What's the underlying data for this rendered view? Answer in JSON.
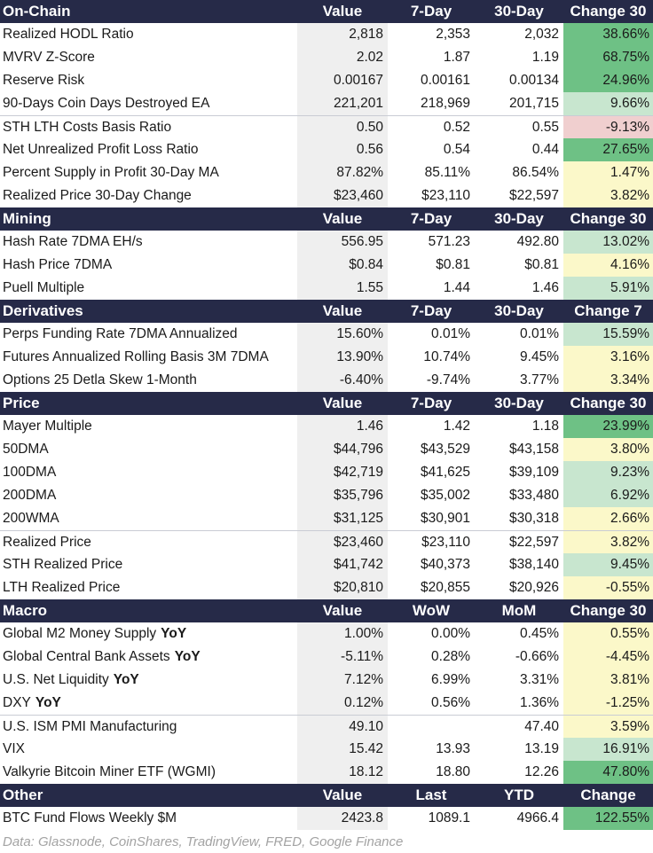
{
  "colors": {
    "header_bg": "#262a48",
    "value_col_bg": "#efefef",
    "strong_green": "#6ec185",
    "light_green": "#c8e6cf",
    "light_yellow": "#fbf8c9",
    "light_red": "#f0cfcf"
  },
  "sections": [
    {
      "title": "On-Chain",
      "columns": [
        "Value",
        "7-Day",
        "30-Day",
        "Change 30"
      ],
      "rows": [
        {
          "name": "Realized HODL Ratio",
          "v": "2,818",
          "w": "2,353",
          "m": "2,032",
          "ch": "38.66%",
          "tone": "sg"
        },
        {
          "name": "MVRV Z-Score",
          "v": "2.02",
          "w": "1.87",
          "m": "1.19",
          "ch": "68.75%",
          "tone": "sg"
        },
        {
          "name": "Reserve Risk",
          "v": "0.00167",
          "w": "0.00161",
          "m": "0.00134",
          "ch": "24.96%",
          "tone": "sg"
        },
        {
          "name": "90-Days Coin Days Destroyed EA",
          "v": "221,201",
          "w": "218,969",
          "m": "201,715",
          "ch": "9.66%",
          "tone": "lg"
        },
        {
          "name": "STH LTH Costs Basis Ratio",
          "v": "0.50",
          "w": "0.52",
          "m": "0.55",
          "ch": "-9.13%",
          "tone": "lr",
          "sep": true
        },
        {
          "name": "Net Unrealized Profit Loss Ratio",
          "v": "0.56",
          "w": "0.54",
          "m": "0.44",
          "ch": "27.65%",
          "tone": "sg"
        },
        {
          "name": "Percent Supply in Profit 30-Day MA",
          "v": "87.82%",
          "w": "85.11%",
          "m": "86.54%",
          "ch": "1.47%",
          "tone": "ly"
        },
        {
          "name": "Realized Price 30-Day Change",
          "v": "$23,460",
          "w": "$23,110",
          "m": "$22,597",
          "ch": "3.82%",
          "tone": "ly"
        }
      ]
    },
    {
      "title": "Mining",
      "columns": [
        "Value",
        "7-Day",
        "30-Day",
        "Change 30"
      ],
      "rows": [
        {
          "name": "Hash Rate 7DMA EH/s",
          "v": "556.95",
          "w": "571.23",
          "m": "492.80",
          "ch": "13.02%",
          "tone": "lg"
        },
        {
          "name": "Hash Price 7DMA",
          "v": "$0.84",
          "w": "$0.81",
          "m": "$0.81",
          "ch": "4.16%",
          "tone": "ly"
        },
        {
          "name": "Puell Multiple",
          "v": "1.55",
          "w": "1.44",
          "m": "1.46",
          "ch": "5.91%",
          "tone": "lg"
        }
      ]
    },
    {
      "title": "Derivatives",
      "columns": [
        "Value",
        "7-Day",
        "30-Day",
        "Change 7"
      ],
      "rows": [
        {
          "name": "Perps Funding Rate 7DMA Annualized",
          "v": "15.60%",
          "w": "0.01%",
          "m": "0.01%",
          "ch": "15.59%",
          "tone": "lg"
        },
        {
          "name": "Futures Annualized Rolling Basis 3M 7DMA",
          "v": "13.90%",
          "w": "10.74%",
          "m": "9.45%",
          "ch": "3.16%",
          "tone": "ly"
        },
        {
          "name": "Options 25 Detla Skew 1-Month",
          "v": "-6.40%",
          "w": "-9.74%",
          "m": "3.77%",
          "ch": "3.34%",
          "tone": "ly"
        }
      ]
    },
    {
      "title": "Price",
      "columns": [
        "Value",
        "7-Day",
        "30-Day",
        "Change 30"
      ],
      "rows": [
        {
          "name": "Mayer Multiple",
          "v": "1.46",
          "w": "1.42",
          "m": "1.18",
          "ch": "23.99%",
          "tone": "sg"
        },
        {
          "name": "50DMA",
          "v": "$44,796",
          "w": "$43,529",
          "m": "$43,158",
          "ch": "3.80%",
          "tone": "ly"
        },
        {
          "name": "100DMA",
          "v": "$42,719",
          "w": "$41,625",
          "m": "$39,109",
          "ch": "9.23%",
          "tone": "lg"
        },
        {
          "name": "200DMA",
          "v": "$35,796",
          "w": "$35,002",
          "m": "$33,480",
          "ch": "6.92%",
          "tone": "lg"
        },
        {
          "name": "200WMA",
          "v": "$31,125",
          "w": "$30,901",
          "m": "$30,318",
          "ch": "2.66%",
          "tone": "ly"
        },
        {
          "name": "Realized Price",
          "v": "$23,460",
          "w": "$23,110",
          "m": "$22,597",
          "ch": "3.82%",
          "tone": "ly",
          "sep": true
        },
        {
          "name": "STH Realized Price",
          "v": "$41,742",
          "w": "$40,373",
          "m": "$38,140",
          "ch": "9.45%",
          "tone": "lg"
        },
        {
          "name": "LTH Realized Price",
          "v": "$20,810",
          "w": "$20,855",
          "m": "$20,926",
          "ch": "-0.55%",
          "tone": "ly"
        }
      ]
    },
    {
      "title": "Macro",
      "columns": [
        "Value",
        "WoW",
        "MoM",
        "Change 30"
      ],
      "rows": [
        {
          "name": "Global M2 Money Supply",
          "yoy": "YoY",
          "v": "1.00%",
          "w": "0.00%",
          "m": "0.45%",
          "ch": "0.55%",
          "tone": "ly"
        },
        {
          "name": "Global Central Bank Assets",
          "yoy": "YoY",
          "v": "-5.11%",
          "w": "0.28%",
          "m": "-0.66%",
          "ch": "-4.45%",
          "tone": "ly"
        },
        {
          "name": "U.S. Net Liquidity",
          "yoy": "YoY",
          "v": "7.12%",
          "w": "6.99%",
          "m": "3.31%",
          "ch": "3.81%",
          "tone": "ly"
        },
        {
          "name": "DXY",
          "yoy": "YoY",
          "v": "0.12%",
          "w": "0.56%",
          "m": "1.36%",
          "ch": "-1.25%",
          "tone": "ly"
        },
        {
          "name": "U.S. ISM PMI Manufacturing",
          "v": "49.10",
          "w": "",
          "m": "47.40",
          "ch": "3.59%",
          "tone": "ly",
          "sep": true
        },
        {
          "name": "VIX",
          "v": "15.42",
          "w": "13.93",
          "m": "13.19",
          "ch": "16.91%",
          "tone": "lg"
        },
        {
          "name": "Valkyrie Bitcoin Miner ETF (WGMI)",
          "v": "18.12",
          "w": "18.80",
          "m": "12.26",
          "ch": "47.80%",
          "tone": "sg"
        }
      ]
    },
    {
      "title": "Other",
      "columns": [
        "Value",
        "Last",
        "YTD",
        "Change"
      ],
      "rows": [
        {
          "name": "BTC Fund Flows Weekly $M",
          "v": "2423.8",
          "w": "1089.1",
          "m": "4966.4",
          "ch": "122.55%",
          "tone": "sg"
        }
      ]
    }
  ],
  "source": "Data: Glassnode, CoinShares, TradingView, FRED, Google Finance"
}
